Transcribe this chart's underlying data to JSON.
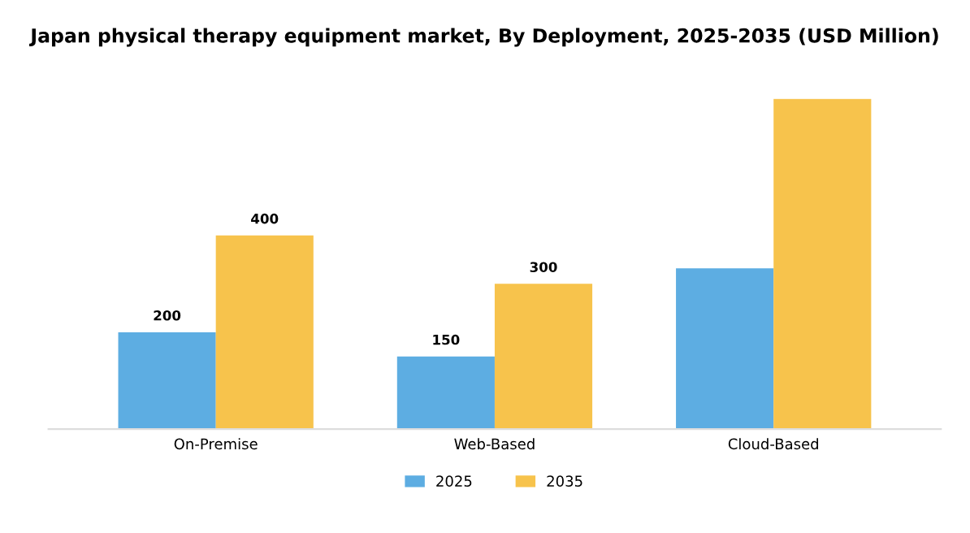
{
  "chart_data": {
    "type": "bar",
    "title": "Japan physical therapy equipment market, By Deployment, 2025-2035 (USD Million)",
    "categories": [
      "On-Premise",
      "Web-Based",
      "Cloud-Based"
    ],
    "series": [
      {
        "name": "2025",
        "color": "#5dade2",
        "values": [
          200,
          150,
          332
        ],
        "value_labels": [
          "200",
          "150",
          null
        ]
      },
      {
        "name": "2035",
        "color": "#f7c34c",
        "values": [
          400,
          300,
          682
        ],
        "value_labels": [
          "400",
          "300",
          null
        ]
      }
    ],
    "legend": "bottom",
    "grid": false,
    "tick_labels": "x"
  }
}
